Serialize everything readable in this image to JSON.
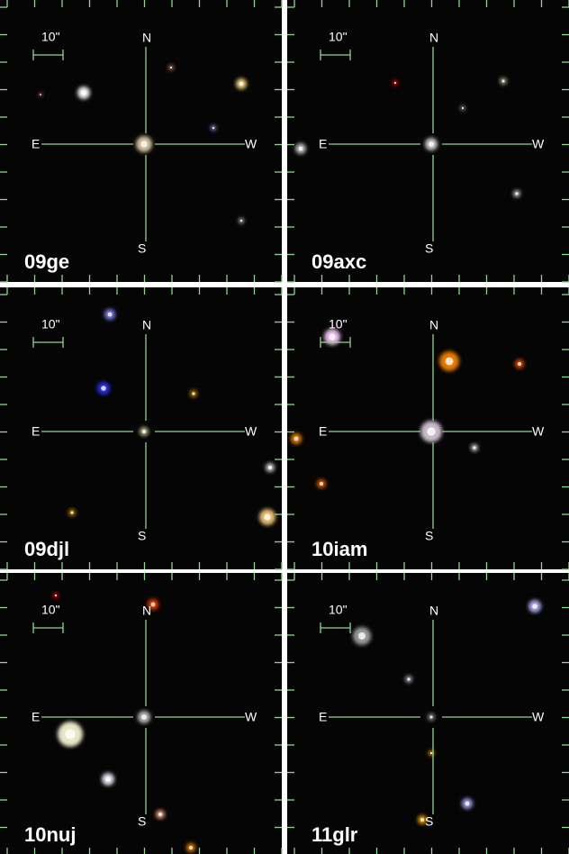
{
  "panels": [
    {
      "name": "09ge",
      "scale": "10\"",
      "north": "N",
      "south": "S",
      "east": "E",
      "west": "W"
    },
    {
      "name": "09axc",
      "scale": "10\"",
      "north": "N",
      "south": "S",
      "east": "E",
      "west": "W"
    },
    {
      "name": "09djl",
      "scale": "10\"",
      "north": "N",
      "south": "S",
      "east": "E",
      "west": "W"
    },
    {
      "name": "10iam",
      "scale": "10\"",
      "north": "N",
      "south": "S",
      "east": "E",
      "west": "W"
    },
    {
      "name": "10nuj",
      "scale": "10\"",
      "north": "N",
      "south": "S",
      "east": "E",
      "west": "W"
    },
    {
      "name": "11glr",
      "scale": "10\"",
      "north": "N",
      "south": "S",
      "east": "E",
      "west": "W"
    }
  ]
}
